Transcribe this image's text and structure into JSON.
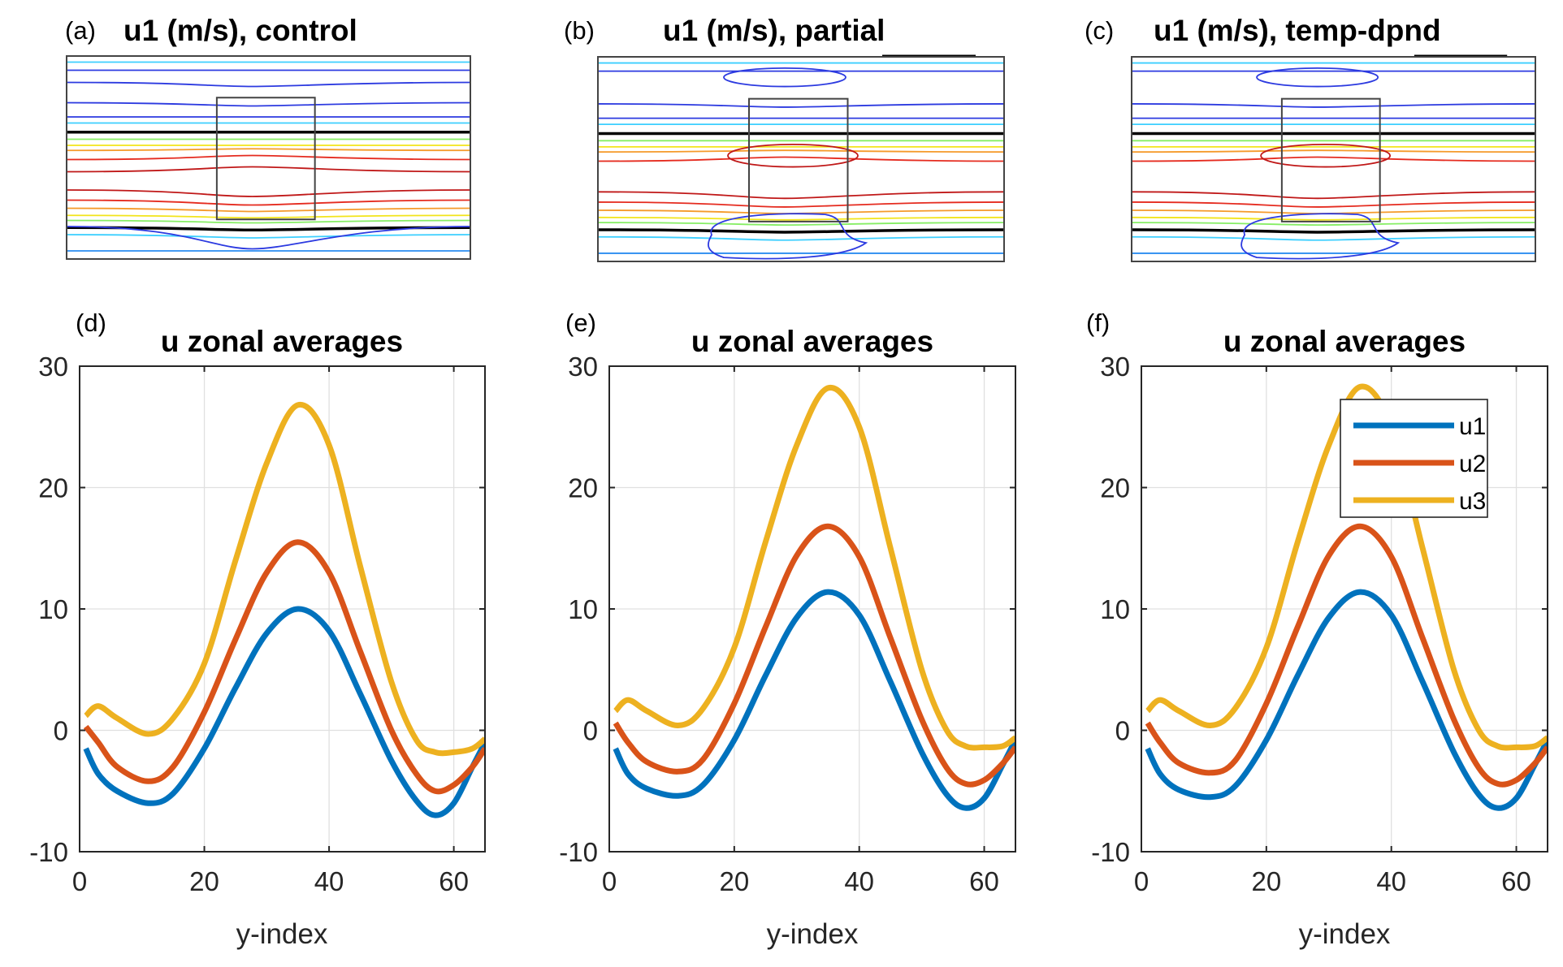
{
  "figure": {
    "panels_top": [
      {
        "id": "a",
        "panel_label": "(a)",
        "title": "u1 (m/s), control",
        "variant": "control"
      },
      {
        "id": "b",
        "panel_label": "(b)",
        "title": "u1 (m/s), partial",
        "variant": "partial"
      },
      {
        "id": "c",
        "panel_label": "(c)",
        "title": "u1 (m/s), temp-dpnd",
        "variant": "temp-dpnd"
      }
    ],
    "contour_colors": {
      "cyan": "#3ccfff",
      "light_blue": "#2a8cf0",
      "blue": "#2c3ae0",
      "black": "#000000",
      "green": "#86ee64",
      "yellow": "#f2e41a",
      "orange": "#f59a2a",
      "red": "#e52b1f",
      "dark_red": "#c01818"
    }
  },
  "chart_data": [
    {
      "type": "line",
      "panel_label": "(d)",
      "title": "u zonal averages",
      "xlabel": "y-index",
      "ylabel": "",
      "xlim": [
        0,
        65
      ],
      "ylim": [
        -10,
        30
      ],
      "xticks": [
        0,
        20,
        40,
        60
      ],
      "yticks": [
        -10,
        0,
        10,
        20,
        30
      ],
      "xtick_labels": [
        "0",
        "20",
        "40",
        "60"
      ],
      "ytick_labels": [
        "-10",
        "0",
        "10",
        "20",
        "30"
      ],
      "grid": true,
      "legend": null,
      "x": [
        1,
        3,
        6,
        11,
        15,
        20,
        25,
        30,
        35,
        40,
        45,
        50,
        54,
        57,
        60,
        63,
        65
      ],
      "series": [
        {
          "name": "u1",
          "color": "#0072bd",
          "values": [
            -1.5,
            -3.6,
            -5.0,
            -6.0,
            -5.2,
            -1.5,
            3.5,
            8.0,
            10.0,
            8.2,
            3.0,
            -2.5,
            -5.8,
            -7.0,
            -6.0,
            -3.0,
            -1.0
          ]
        },
        {
          "name": "u2",
          "color": "#d95319",
          "values": [
            0.3,
            -1.0,
            -3.0,
            -4.2,
            -3.0,
            1.5,
            7.5,
            13.0,
            15.5,
            13.0,
            6.5,
            0.0,
            -3.6,
            -5.0,
            -4.5,
            -3.0,
            -1.5
          ]
        },
        {
          "name": "u3",
          "color": "#edb120",
          "values": [
            1.2,
            2.0,
            1.0,
            -0.3,
            1.0,
            5.5,
            14.0,
            22.0,
            26.8,
            23.5,
            13.5,
            4.0,
            -0.8,
            -1.8,
            -1.8,
            -1.5,
            -0.7
          ]
        }
      ]
    },
    {
      "type": "line",
      "panel_label": "(e)",
      "title": "u zonal averages",
      "xlabel": "y-index",
      "ylabel": "",
      "xlim": [
        0,
        65
      ],
      "ylim": [
        -10,
        30
      ],
      "xticks": [
        0,
        20,
        40,
        60
      ],
      "yticks": [
        -10,
        0,
        10,
        20,
        30
      ],
      "xtick_labels": [
        "0",
        "20",
        "40",
        "60"
      ],
      "ytick_labels": [
        "-10",
        "0",
        "10",
        "20",
        "30"
      ],
      "grid": true,
      "legend": null,
      "x": [
        1,
        3,
        6,
        11,
        15,
        20,
        25,
        30,
        35,
        40,
        45,
        50,
        54,
        57,
        60,
        63,
        65
      ],
      "series": [
        {
          "name": "u1",
          "color": "#0072bd",
          "values": [
            -1.5,
            -3.6,
            -4.8,
            -5.4,
            -4.5,
            -0.8,
            4.5,
            9.3,
            11.4,
            9.5,
            4.0,
            -1.8,
            -5.3,
            -6.4,
            -5.6,
            -2.8,
            -0.8
          ]
        },
        {
          "name": "u2",
          "color": "#d95319",
          "values": [
            0.6,
            -1.0,
            -2.6,
            -3.4,
            -2.4,
            2.2,
            8.5,
            14.4,
            16.8,
            14.3,
            7.6,
            0.9,
            -3.1,
            -4.4,
            -4.1,
            -2.7,
            -1.4
          ]
        },
        {
          "name": "u3",
          "color": "#edb120",
          "values": [
            1.6,
            2.5,
            1.6,
            0.4,
            1.8,
            6.8,
            15.5,
            23.5,
            28.2,
            25.0,
            15.0,
            5.0,
            0.0,
            -1.3,
            -1.4,
            -1.3,
            -0.6
          ]
        }
      ]
    },
    {
      "type": "line",
      "panel_label": "(f)",
      "title": "u zonal averages",
      "xlabel": "y-index",
      "ylabel": "",
      "xlim": [
        0,
        65
      ],
      "ylim": [
        -10,
        30
      ],
      "xticks": [
        0,
        20,
        40,
        60
      ],
      "yticks": [
        -10,
        0,
        10,
        20,
        30
      ],
      "xtick_labels": [
        "0",
        "20",
        "40",
        "60"
      ],
      "ytick_labels": [
        "-10",
        "0",
        "10",
        "20",
        "30"
      ],
      "grid": true,
      "legend": {
        "placement": "top-right",
        "entries": [
          "u1",
          "u2",
          "u3"
        ]
      },
      "x": [
        1,
        3,
        6,
        11,
        15,
        20,
        25,
        30,
        35,
        40,
        45,
        50,
        54,
        57,
        60,
        63,
        65
      ],
      "series": [
        {
          "name": "u1",
          "color": "#0072bd",
          "values": [
            -1.5,
            -3.6,
            -4.9,
            -5.5,
            -4.6,
            -0.8,
            4.5,
            9.3,
            11.4,
            9.5,
            4.0,
            -1.8,
            -5.3,
            -6.4,
            -5.6,
            -2.8,
            -0.8
          ]
        },
        {
          "name": "u2",
          "color": "#d95319",
          "values": [
            0.6,
            -1.0,
            -2.7,
            -3.5,
            -2.5,
            2.2,
            8.5,
            14.4,
            16.8,
            14.3,
            7.6,
            0.9,
            -3.1,
            -4.4,
            -4.1,
            -2.7,
            -1.4
          ]
        },
        {
          "name": "u3",
          "color": "#edb120",
          "values": [
            1.6,
            2.5,
            1.6,
            0.4,
            1.8,
            6.8,
            15.5,
            23.5,
            28.3,
            25.0,
            15.0,
            5.0,
            0.0,
            -1.3,
            -1.4,
            -1.3,
            -0.6
          ]
        }
      ]
    }
  ]
}
